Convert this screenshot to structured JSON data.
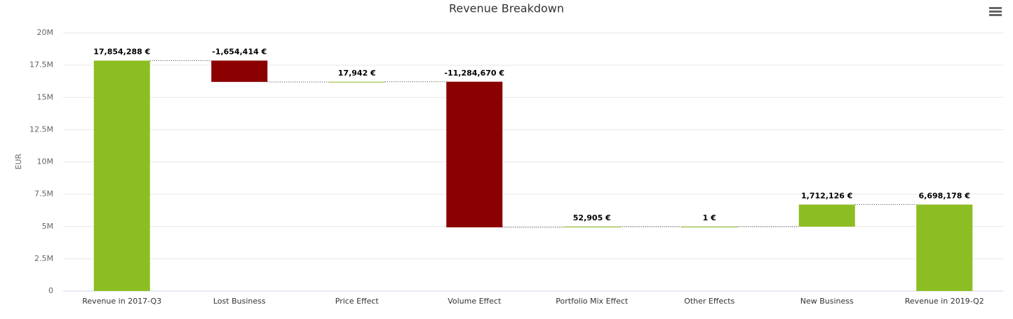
{
  "chart_data": {
    "type": "waterfall",
    "title": "Revenue Breakdown",
    "y_axis_label": "EUR",
    "categories": [
      "Revenue in 2017-Q3",
      "Lost Business",
      "Price Effect",
      "Volume Effect",
      "Portfolio Mix Effect",
      "Other Effects",
      "New Business",
      "Revenue in 2019-Q2"
    ],
    "values": [
      17854288,
      -1654414,
      17942,
      -11284670,
      52905,
      1,
      1712126,
      6698178
    ],
    "value_labels": [
      "17,854,288 €",
      "-1,654,414 €",
      "17,942 €",
      "-11,284,670 €",
      "52,905 €",
      "1 €",
      "1,712,126 €",
      "6,698,178 €"
    ],
    "is_sum": [
      false,
      false,
      false,
      false,
      false,
      false,
      false,
      true
    ],
    "color_up": "#8cbd22",
    "color_down": "#8b0000",
    "ylim": [
      0,
      20000000
    ],
    "yticks": [
      0,
      {
        "value": 2500000,
        "label": "2.5M"
      },
      {
        "value": 5000000,
        "label": "5M"
      },
      {
        "value": 7500000,
        "label": "7.5M"
      },
      {
        "value": 10000000,
        "label": "10M"
      },
      {
        "value": 12500000,
        "label": "12.5M"
      },
      {
        "value": 15000000,
        "label": "15M"
      },
      {
        "value": 17500000,
        "label": "17.5M"
      },
      {
        "value": 20000000,
        "label": "20M"
      }
    ],
    "grid": true
  }
}
